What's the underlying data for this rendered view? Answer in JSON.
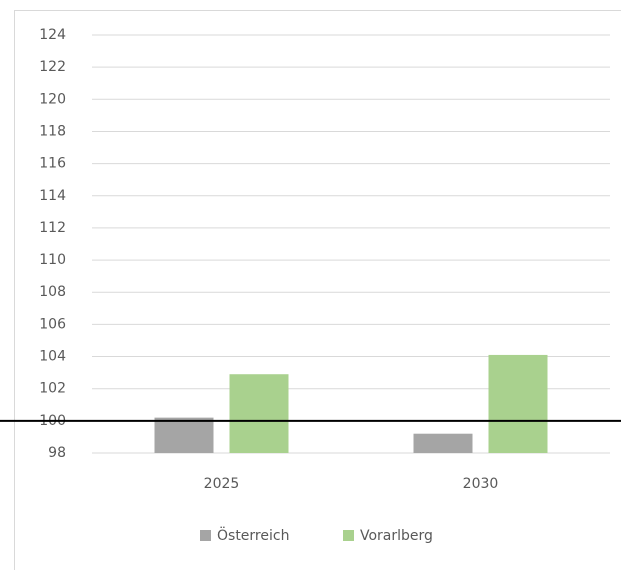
{
  "chart_data": {
    "type": "bar",
    "categories": [
      "2025",
      "2030"
    ],
    "series": [
      {
        "name": "Österreich",
        "color": "#a5a5a5",
        "values": [
          100.2,
          99.2
        ]
      },
      {
        "name": "Vorarlberg",
        "color": "#a9d18e",
        "values": [
          102.9,
          104.1
        ]
      }
    ],
    "ylim": [
      98,
      124
    ],
    "yticks": [
      98,
      100,
      102,
      104,
      106,
      108,
      110,
      112,
      114,
      116,
      118,
      120,
      122,
      124
    ],
    "grid": true,
    "legend": "bottom",
    "reference_line": 100
  }
}
